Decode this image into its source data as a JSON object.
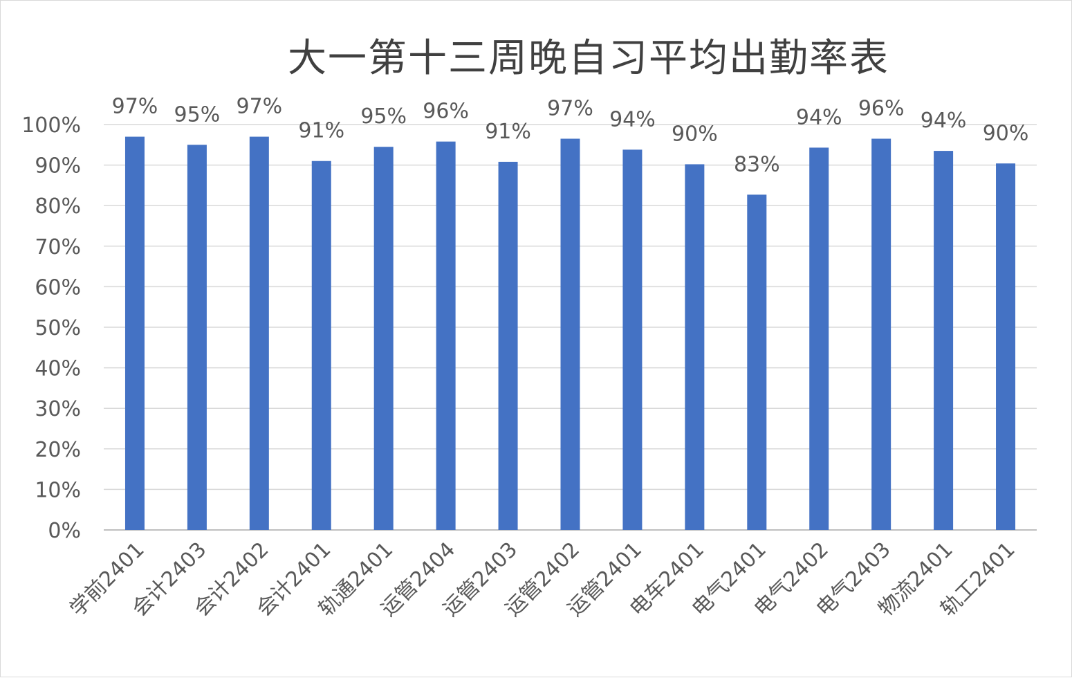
{
  "chart_data": {
    "type": "bar",
    "title": "大一第十三周晚自习平均出勤率表",
    "xlabel": "",
    "ylabel": "",
    "ylim": [
      0,
      100
    ],
    "y_ticks": [
      0,
      10,
      20,
      30,
      40,
      50,
      60,
      70,
      80,
      90,
      100
    ],
    "y_tick_labels": [
      "0%",
      "10%",
      "20%",
      "30%",
      "40%",
      "50%",
      "60%",
      "70%",
      "80%",
      "90%",
      "100%"
    ],
    "grid": true,
    "legend": "none",
    "bar_color": "#4472C4",
    "categories": [
      "学前2401",
      "会计2403",
      "会计2402",
      "会计2401",
      "轨通2401",
      "运管2404",
      "运管2403",
      "运管2402",
      "运管2401",
      "电车2401",
      "电气2401",
      "电气2402",
      "电气2403",
      "物流2401",
      "轨工2401"
    ],
    "values": [
      97,
      95,
      97,
      91,
      94.5,
      95.8,
      90.8,
      96.5,
      93.8,
      90.2,
      82.7,
      94.3,
      96.5,
      93.5,
      90.4
    ],
    "data_labels": [
      "97%",
      "95%",
      "97%",
      "91%",
      "95%",
      "96%",
      "91%",
      "97%",
      "94%",
      "90%",
      "83%",
      "94%",
      "96%",
      "94%",
      "90%"
    ]
  }
}
